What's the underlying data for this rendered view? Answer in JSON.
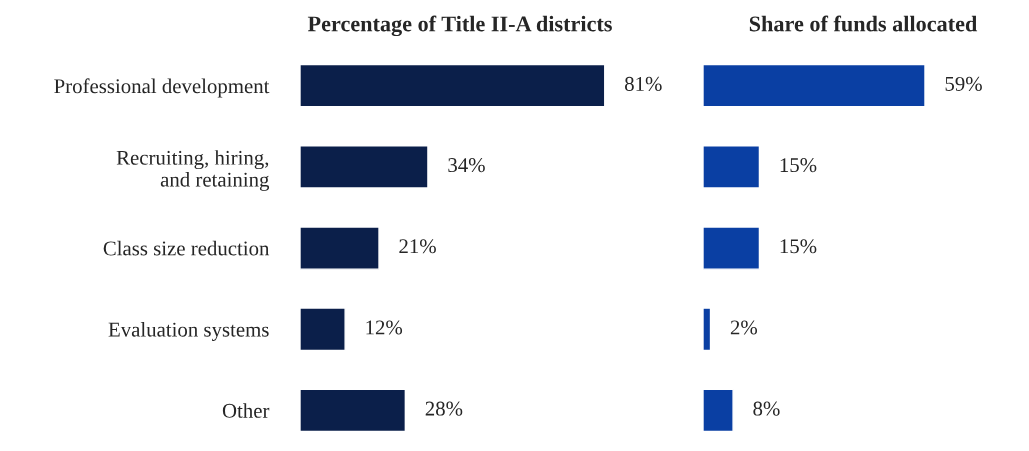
{
  "chart_data": [
    {
      "type": "bar",
      "orientation": "horizontal",
      "title": "Percentage of Title II-A districts",
      "categories": [
        "Professional development",
        "Recruiting, hiring,\nand retaining",
        "Class size reduction",
        "Evaluation systems",
        "Other"
      ],
      "values": [
        81,
        34,
        21,
        12,
        28
      ],
      "color": "#0b1f4a",
      "data_labels": true,
      "value_labels": [
        "81%",
        "34%",
        "21%",
        "12%",
        "28%"
      ],
      "tick_labels": "y"
    },
    {
      "type": "bar",
      "orientation": "horizontal",
      "title": "Share of funds allocated",
      "categories": [
        null,
        null,
        null,
        null,
        null
      ],
      "values": [
        59,
        15,
        15,
        2,
        8
      ],
      "color": "#0a3fa3",
      "data_labels": true,
      "value_labels": [
        "59%",
        "15%",
        "15%",
        "2%",
        "8%"
      ],
      "tick_labels": false
    }
  ]
}
